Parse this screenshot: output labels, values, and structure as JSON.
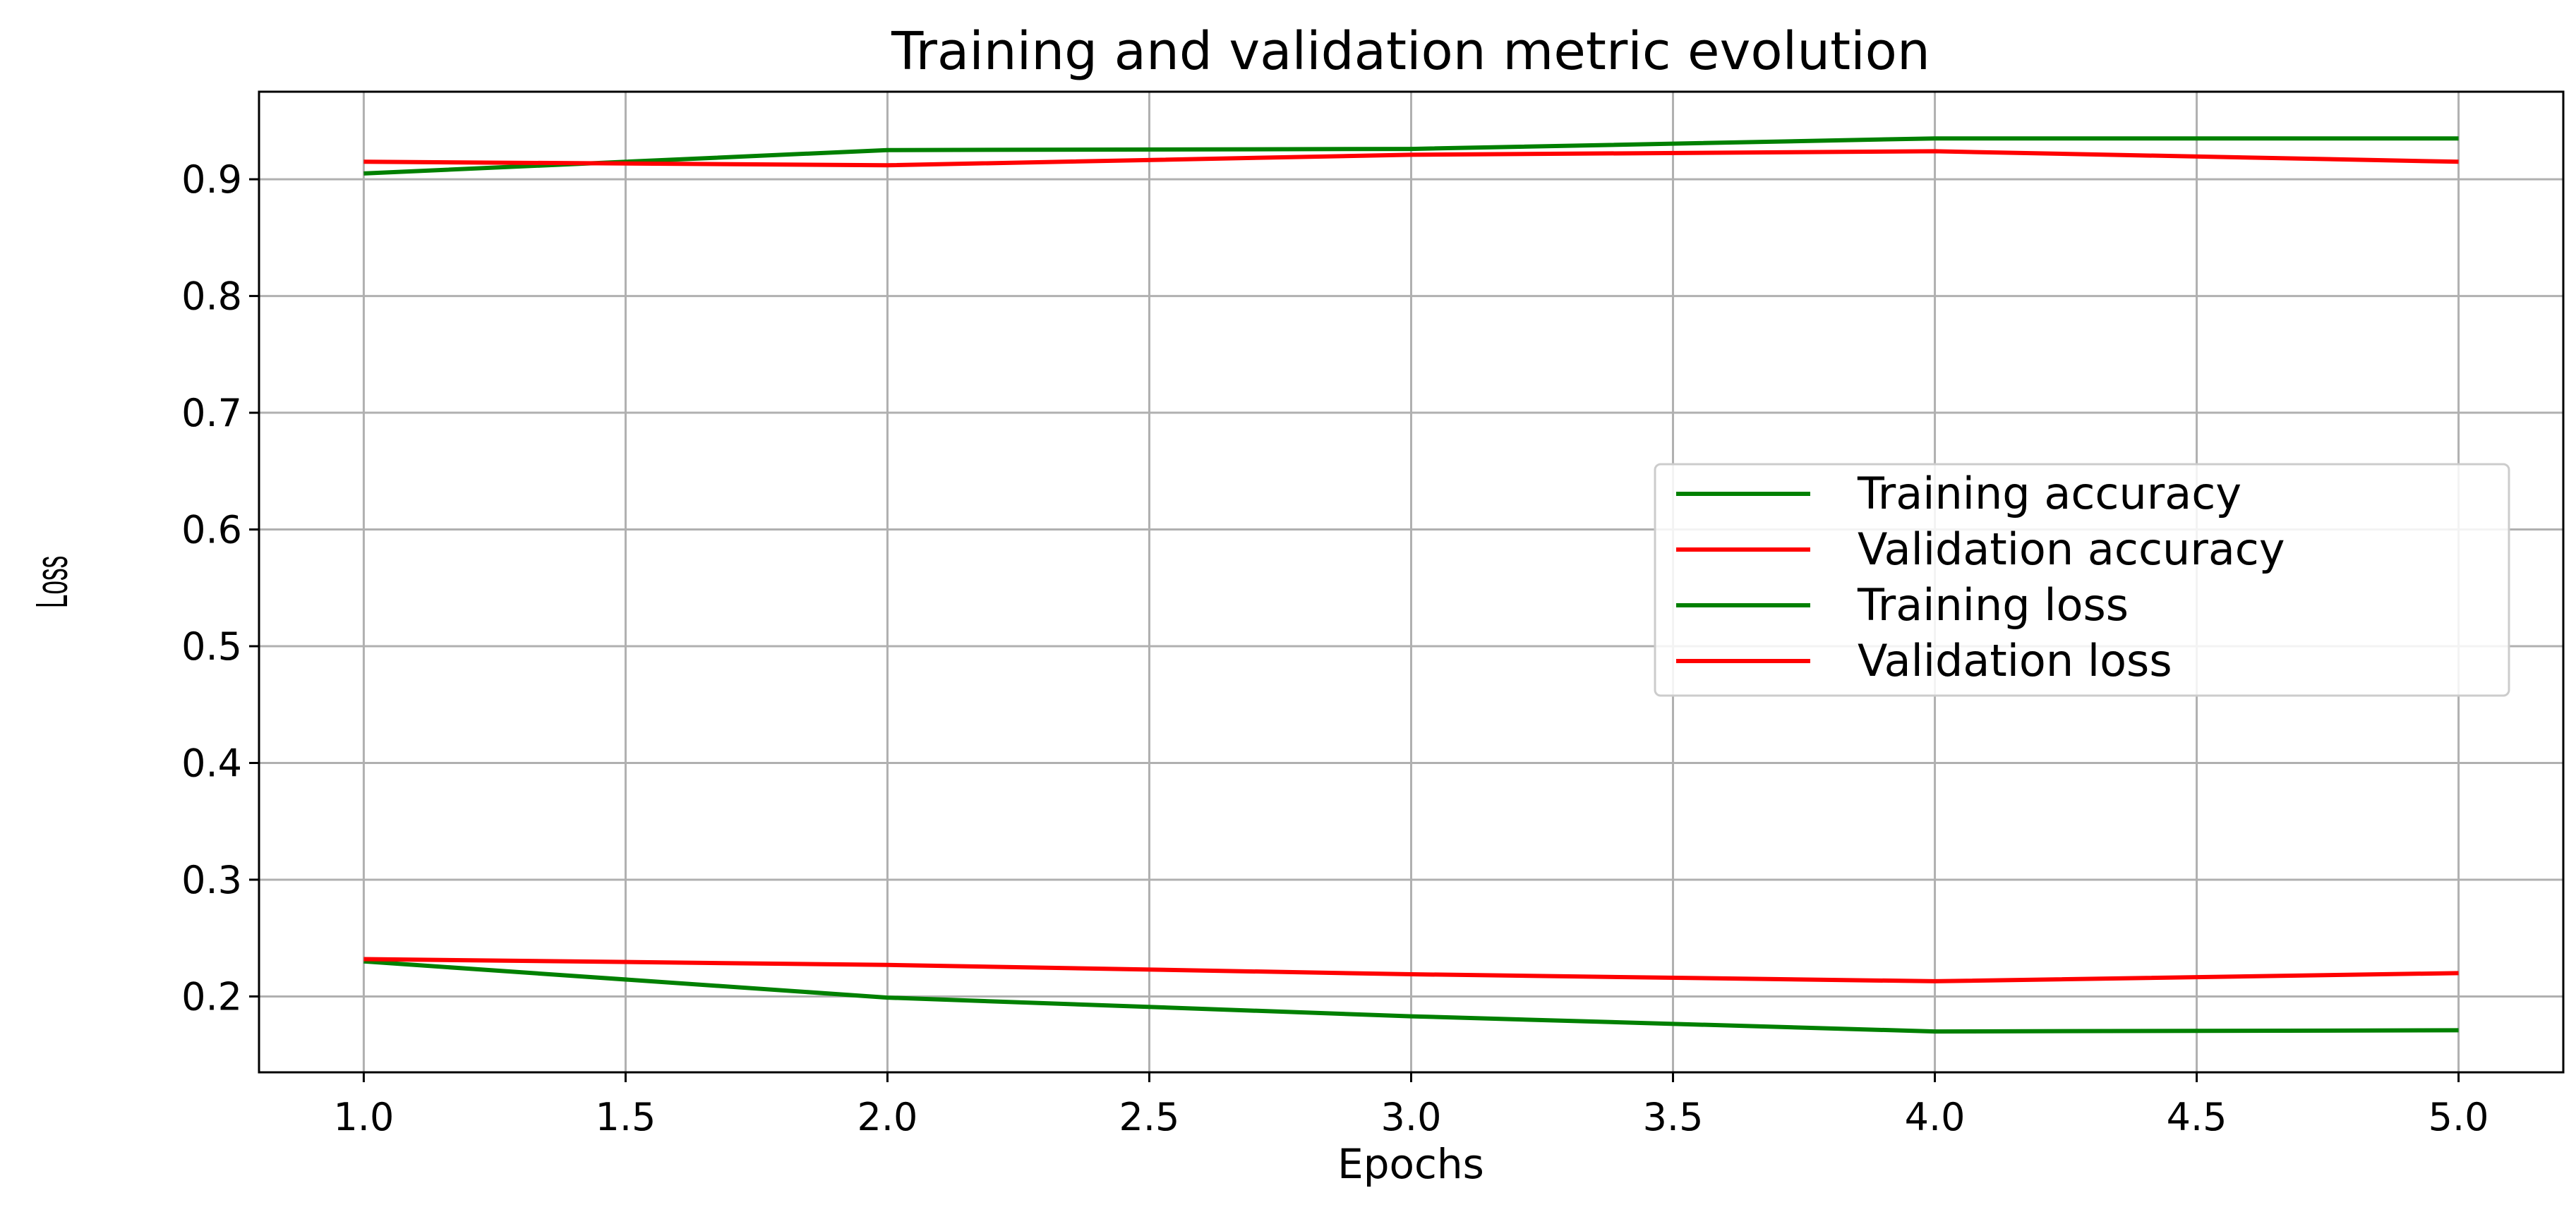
{
  "chart_data": {
    "type": "line",
    "title": "Training and validation metric evolution",
    "xlabel": "Epochs",
    "ylabel": "Loss",
    "x": [
      1,
      2,
      3,
      4,
      5
    ],
    "xlim": [
      0.8,
      5.2
    ],
    "ylim": [
      0.135,
      0.975
    ],
    "xticks": [
      1.0,
      1.5,
      2.0,
      2.5,
      3.0,
      3.5,
      4.0,
      4.5,
      5.0
    ],
    "xtick_labels": [
      "1.0",
      "1.5",
      "2.0",
      "2.5",
      "3.0",
      "3.5",
      "4.0",
      "4.5",
      "5.0"
    ],
    "yticks": [
      0.2,
      0.3,
      0.4,
      0.5,
      0.6,
      0.7,
      0.8,
      0.9
    ],
    "ytick_labels": [
      "0.2",
      "0.3",
      "0.4",
      "0.5",
      "0.6",
      "0.7",
      "0.8",
      "0.9"
    ],
    "grid": true,
    "legend_position": "center-right",
    "series": [
      {
        "name": "Training accuracy",
        "color": "#008000",
        "values": [
          0.905,
          0.925,
          0.926,
          0.935,
          0.935
        ]
      },
      {
        "name": "Validation accuracy",
        "color": "#ff0000",
        "values": [
          0.915,
          0.912,
          0.921,
          0.924,
          0.915
        ]
      },
      {
        "name": "Training loss",
        "color": "#008000",
        "values": [
          0.23,
          0.199,
          0.183,
          0.17,
          0.171
        ]
      },
      {
        "name": "Validation loss",
        "color": "#ff0000",
        "values": [
          0.232,
          0.227,
          0.219,
          0.213,
          0.22
        ]
      }
    ]
  }
}
